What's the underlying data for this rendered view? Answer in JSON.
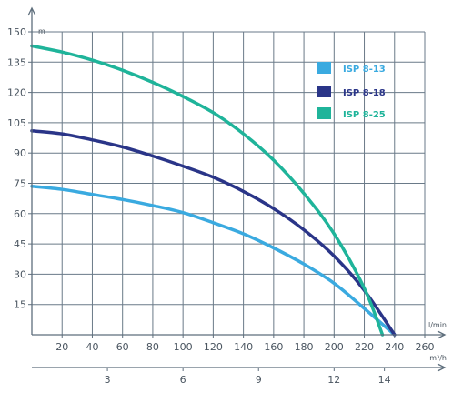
{
  "chart_data": {
    "type": "line",
    "title": "",
    "y_unit": "m",
    "x_unit": "l/min",
    "x2_unit": "m³/h",
    "xlim": [
      0,
      260
    ],
    "ylim": [
      0,
      150
    ],
    "x_ticks": [
      "20",
      "40",
      "60",
      "80",
      "100",
      "120",
      "140",
      "160",
      "180",
      "200",
      "220",
      "240",
      "260"
    ],
    "y_ticks": [
      "15",
      "30",
      "45",
      "60",
      "75",
      "90",
      "105",
      "120",
      "135",
      "150"
    ],
    "x2_ticks": [
      "3",
      "6",
      "9",
      "12",
      "14"
    ],
    "x2_values_lpm": [
      50,
      100,
      150,
      200,
      233.3
    ],
    "grid": true,
    "legend_position": "top-right",
    "series": [
      {
        "name": "ISP 8-13",
        "color": "#3aaae0",
        "x": [
          0,
          20,
          40,
          60,
          80,
          100,
          120,
          140,
          160,
          180,
          200,
          220,
          240
        ],
        "y": [
          73.5,
          72,
          69.5,
          67,
          64,
          60.5,
          55.5,
          50,
          43,
          35,
          25.5,
          13,
          0
        ]
      },
      {
        "name": "ISP 8-18",
        "color": "#2a3588",
        "x": [
          0,
          20,
          40,
          60,
          80,
          100,
          120,
          140,
          160,
          180,
          200,
          220,
          240
        ],
        "y": [
          101,
          99.5,
          96.5,
          93,
          88.5,
          83.5,
          78,
          71,
          62.5,
          52,
          39,
          22,
          0
        ]
      },
      {
        "name": "ISP 8-25",
        "color": "#1fb49a",
        "x": [
          0,
          20,
          40,
          60,
          80,
          100,
          120,
          140,
          160,
          180,
          200,
          220,
          232
        ],
        "y": [
          143,
          140,
          136,
          131,
          125,
          118,
          110,
          99.5,
          86.5,
          70,
          50,
          23,
          0
        ]
      }
    ]
  }
}
